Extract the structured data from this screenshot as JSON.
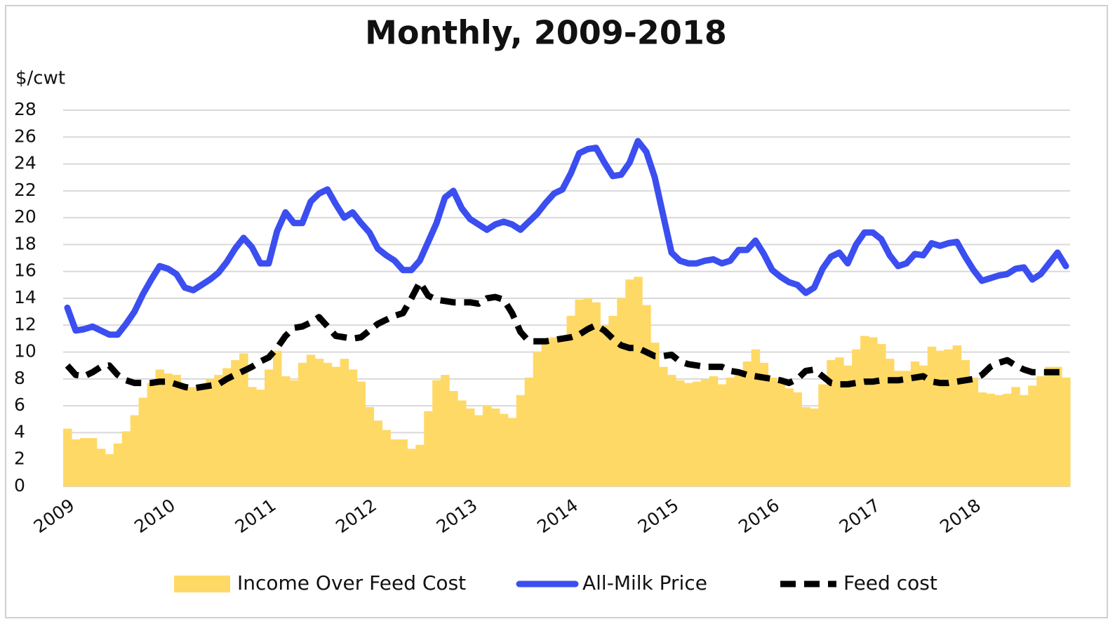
{
  "chart_data": {
    "type": "combo",
    "title": "Monthly, 2009-2018",
    "y_label": "$/cwt",
    "ylim": [
      0,
      28
    ],
    "yticks": [
      0,
      2,
      4,
      6,
      8,
      10,
      12,
      14,
      16,
      18,
      20,
      22,
      24,
      26,
      28
    ],
    "grid": true,
    "legend": "bottom",
    "categories": [
      "2009",
      null,
      null,
      null,
      null,
      null,
      null,
      null,
      null,
      null,
      null,
      null,
      "2010",
      null,
      null,
      null,
      null,
      null,
      null,
      null,
      null,
      null,
      null,
      null,
      "2011",
      null,
      null,
      null,
      null,
      null,
      null,
      null,
      null,
      null,
      null,
      null,
      "2012",
      null,
      null,
      null,
      null,
      null,
      null,
      null,
      null,
      null,
      null,
      null,
      "2013",
      null,
      null,
      null,
      null,
      null,
      null,
      null,
      null,
      null,
      null,
      null,
      "2014",
      null,
      null,
      null,
      null,
      null,
      null,
      null,
      null,
      null,
      null,
      null,
      "2015",
      null,
      null,
      null,
      null,
      null,
      null,
      null,
      null,
      null,
      null,
      null,
      "2016",
      null,
      null,
      null,
      null,
      null,
      null,
      null,
      null,
      null,
      null,
      null,
      "2017",
      null,
      null,
      null,
      null,
      null,
      null,
      null,
      null,
      null,
      null,
      null,
      "2018",
      null,
      null,
      null,
      null,
      null,
      null,
      null,
      null,
      null,
      null,
      null
    ],
    "series": [
      {
        "name": "Income Over Feed Cost",
        "type": "bar",
        "color": "#ffd966",
        "values": [
          4.3,
          3.5,
          3.6,
          3.6,
          2.8,
          2.4,
          3.2,
          4.1,
          5.3,
          6.6,
          7.7,
          8.7,
          8.4,
          8.3,
          7.4,
          7.4,
          7.6,
          8.0,
          8.3,
          8.8,
          9.4,
          9.9,
          7.4,
          7.2,
          8.7,
          10.1,
          8.2,
          7.9,
          9.2,
          9.8,
          9.5,
          9.2,
          8.9,
          9.5,
          8.7,
          7.8,
          5.9,
          4.9,
          4.2,
          3.5,
          3.5,
          2.8,
          3.1,
          5.6,
          7.9,
          8.3,
          7.1,
          6.4,
          5.8,
          5.3,
          6.0,
          5.8,
          5.4,
          5.1,
          6.8,
          8.1,
          10.0,
          11.0,
          11.1,
          11.1,
          12.7,
          13.9,
          14.0,
          13.7,
          12.0,
          12.7,
          14.0,
          15.4,
          15.6,
          13.5,
          10.7,
          8.9,
          8.3,
          7.9,
          7.7,
          7.8,
          8.0,
          8.2,
          7.6,
          8.1,
          8.4,
          9.3,
          10.2,
          9.2,
          8.1,
          7.9,
          7.3,
          7.0,
          5.9,
          5.8,
          7.6,
          9.4,
          9.6,
          9.0,
          10.2,
          11.2,
          11.1,
          10.6,
          9.5,
          8.6,
          8.6,
          9.3,
          9.0,
          10.4,
          10.1,
          10.2,
          10.5,
          9.4,
          8.1,
          7.0,
          6.9,
          6.8,
          6.9,
          7.4,
          6.8,
          7.5,
          8.2,
          8.9,
          8.9,
          8.1
        ]
      },
      {
        "name": "All-Milk Price",
        "type": "line",
        "color": "#3b4ef0",
        "dashed": false,
        "values": [
          13.3,
          11.6,
          11.7,
          11.9,
          11.6,
          11.3,
          11.3,
          12.1,
          13.0,
          14.3,
          15.4,
          16.4,
          16.2,
          15.8,
          14.8,
          14.6,
          15.0,
          15.4,
          15.9,
          16.7,
          17.7,
          18.5,
          17.8,
          16.6,
          16.6,
          19.0,
          20.4,
          19.6,
          19.6,
          21.2,
          21.8,
          22.1,
          21.0,
          20.0,
          20.4,
          19.6,
          18.9,
          17.7,
          17.2,
          16.8,
          16.1,
          16.1,
          16.8,
          18.2,
          19.6,
          21.5,
          22.0,
          20.7,
          19.9,
          19.5,
          19.1,
          19.5,
          19.7,
          19.5,
          19.1,
          19.7,
          20.3,
          21.1,
          21.8,
          22.1,
          23.3,
          24.8,
          25.1,
          25.2,
          24.1,
          23.1,
          23.2,
          24.1,
          25.7,
          24.9,
          23.0,
          20.2,
          17.4,
          16.8,
          16.6,
          16.6,
          16.8,
          16.9,
          16.6,
          16.8,
          17.6,
          17.6,
          18.3,
          17.3,
          16.1,
          15.6,
          15.2,
          15.0,
          14.4,
          14.8,
          16.2,
          17.1,
          17.4,
          16.6,
          18.0,
          18.9,
          18.9,
          18.4,
          17.2,
          16.4,
          16.6,
          17.3,
          17.2,
          18.1,
          17.9,
          18.1,
          18.2,
          17.1,
          16.1,
          15.3,
          15.5,
          15.7,
          15.8,
          16.2,
          16.3,
          15.4,
          15.8,
          16.6,
          17.4,
          16.4
        ]
      },
      {
        "name": "Feed cost",
        "type": "line",
        "color": "#000000",
        "dashed": true,
        "values": [
          9.0,
          8.3,
          8.2,
          8.5,
          8.9,
          9.0,
          8.3,
          7.9,
          7.7,
          7.7,
          7.7,
          7.8,
          7.8,
          7.6,
          7.4,
          7.3,
          7.4,
          7.5,
          7.6,
          8.0,
          8.3,
          8.6,
          8.9,
          9.3,
          9.6,
          10.3,
          11.2,
          11.8,
          11.9,
          12.2,
          12.6,
          11.9,
          11.2,
          11.1,
          11.0,
          11.1,
          11.6,
          12.1,
          12.4,
          12.7,
          12.9,
          14.0,
          15.2,
          14.2,
          13.9,
          13.8,
          13.7,
          13.7,
          13.7,
          13.6,
          14.0,
          14.1,
          13.9,
          12.9,
          11.5,
          10.8,
          10.8,
          10.8,
          10.9,
          11.0,
          11.1,
          11.3,
          11.7,
          12.0,
          11.6,
          11.0,
          10.5,
          10.3,
          10.3,
          10.0,
          9.7,
          9.7,
          9.8,
          9.3,
          9.1,
          9.0,
          8.9,
          8.9,
          8.9,
          8.6,
          8.5,
          8.3,
          8.2,
          8.1,
          8.0,
          7.9,
          7.7,
          8.0,
          8.6,
          8.7,
          8.2,
          7.7,
          7.6,
          7.6,
          7.7,
          7.8,
          7.8,
          7.9,
          7.9,
          7.9,
          8.0,
          8.1,
          8.2,
          7.8,
          7.7,
          7.7,
          7.8,
          7.9,
          8.0,
          8.3,
          8.9,
          9.2,
          9.4,
          9.0,
          8.7,
          8.5,
          8.5,
          8.5,
          8.5,
          8.5
        ]
      }
    ]
  }
}
